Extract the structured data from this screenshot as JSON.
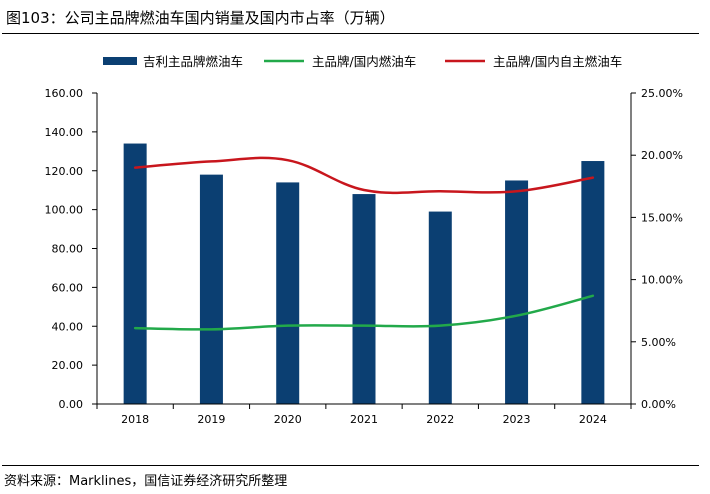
{
  "header": {
    "title": "图103：公司主品牌燃油车国内销量及国内市占率（万辆）"
  },
  "footer": {
    "source": "资料来源：Marklines，国信证券经济研究所整理"
  },
  "colors": {
    "bar": "#0b3f72",
    "line_green": "#22a94a",
    "line_red": "#c8161d",
    "axis": "#000000"
  },
  "chart_data": {
    "type": "bar",
    "categories": [
      "2018",
      "2019",
      "2020",
      "2021",
      "2022",
      "2023",
      "2024"
    ],
    "series": [
      {
        "name": "吉利主品牌燃油车",
        "kind": "bar",
        "axis": "left",
        "values": [
          134,
          118,
          114,
          108,
          99,
          115,
          125
        ]
      },
      {
        "name": "主品牌/国内燃油车",
        "kind": "line",
        "axis": "right",
        "values": [
          0.061,
          0.06,
          0.063,
          0.063,
          0.063,
          0.071,
          0.087
        ]
      },
      {
        "name": "主品牌/国内自主燃油车",
        "kind": "line",
        "axis": "right",
        "values": [
          0.19,
          0.195,
          0.196,
          0.172,
          0.171,
          0.171,
          0.182
        ]
      }
    ],
    "left_axis": {
      "ylim": [
        0,
        160
      ],
      "ticks": [
        "0.00",
        "20.00",
        "40.00",
        "60.00",
        "80.00",
        "100.00",
        "120.00",
        "140.00",
        "160.00"
      ]
    },
    "right_axis": {
      "ylim": [
        0,
        0.25
      ],
      "ticks": [
        "0.00%",
        "5.00%",
        "10.00%",
        "15.00%",
        "20.00%",
        "25.00%"
      ]
    },
    "legend_position": "top",
    "grid": false
  }
}
